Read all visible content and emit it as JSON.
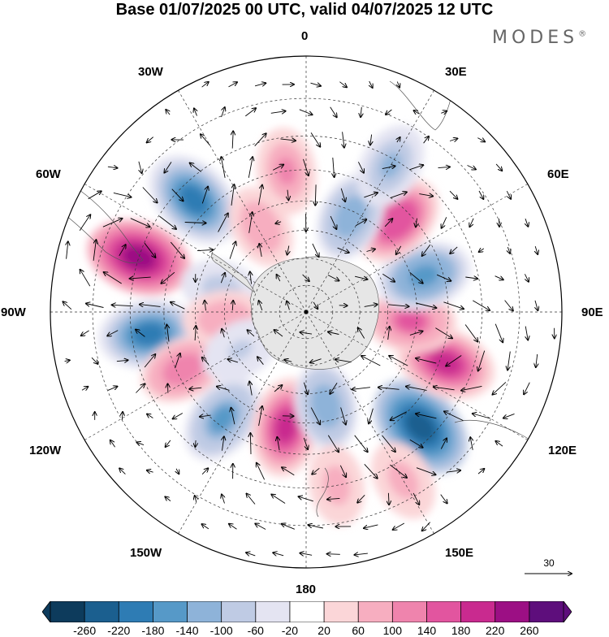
{
  "title": "Base 01/07/2025 00 UTC, valid 04/07/2025 12 UTC",
  "brand": "MODES",
  "brand_mark": "®",
  "longitude_labels": {
    "n": "0",
    "ne": "30E",
    "e60": "60E",
    "e": "90E",
    "se": "120E",
    "se150": "150E",
    "s": "180",
    "sw150": "150W",
    "sw": "120W",
    "w": "90W",
    "w60": "60W",
    "nw": "30W"
  },
  "reference_vector": "30",
  "colorbar": {
    "colors": [
      "#0d3b5c",
      "#1b5f8f",
      "#2e7cb4",
      "#5699c8",
      "#8eb3d9",
      "#bfcbe4",
      "#e4e4f2",
      "#ffffff",
      "#fbd6d8",
      "#f7aec0",
      "#ef84ad",
      "#e2559f",
      "#c92a8f",
      "#9c0f84",
      "#5e0e7c"
    ],
    "ticks": [
      "-260",
      "-220",
      "-180",
      "-140",
      "-100",
      "-60",
      "-20",
      "20",
      "60",
      "100",
      "140",
      "180",
      "220",
      "260"
    ]
  },
  "map": {
    "projection": "south-polar-stereographic",
    "anomalies": [
      {
        "lon": -45,
        "lat": -35,
        "value": -220
      },
      {
        "lon": -72,
        "lat": -30,
        "value": 230
      },
      {
        "lon": -98,
        "lat": -35,
        "value": -200
      },
      {
        "lon": -115,
        "lat": -42,
        "value": 120
      },
      {
        "lon": -142,
        "lat": -42,
        "value": -150
      },
      {
        "lon": -170,
        "lat": -48,
        "value": 190
      },
      {
        "lon": 168,
        "lat": -55,
        "value": -130
      },
      {
        "lon": 135,
        "lat": -34,
        "value": -260
      },
      {
        "lon": 110,
        "lat": -38,
        "value": 200
      },
      {
        "lon": 95,
        "lat": -52,
        "value": 140
      },
      {
        "lon": 73,
        "lat": -46,
        "value": -170
      },
      {
        "lon": 45,
        "lat": -44,
        "value": 170
      },
      {
        "lon": 25,
        "lat": -52,
        "value": -130
      },
      {
        "lon": 30,
        "lat": -32,
        "value": -110
      },
      {
        "lon": -8,
        "lat": -40,
        "value": 110
      },
      {
        "lon": -28,
        "lat": -55,
        "value": 90
      },
      {
        "lon": -75,
        "lat": -58,
        "value": -80
      },
      {
        "lon": -95,
        "lat": -60,
        "value": 90
      },
      {
        "lon": -120,
        "lat": -62,
        "value": -70
      },
      {
        "lon": 150,
        "lat": -25,
        "value": 80
      },
      {
        "lon": 170,
        "lat": -30,
        "value": 70
      }
    ]
  }
}
